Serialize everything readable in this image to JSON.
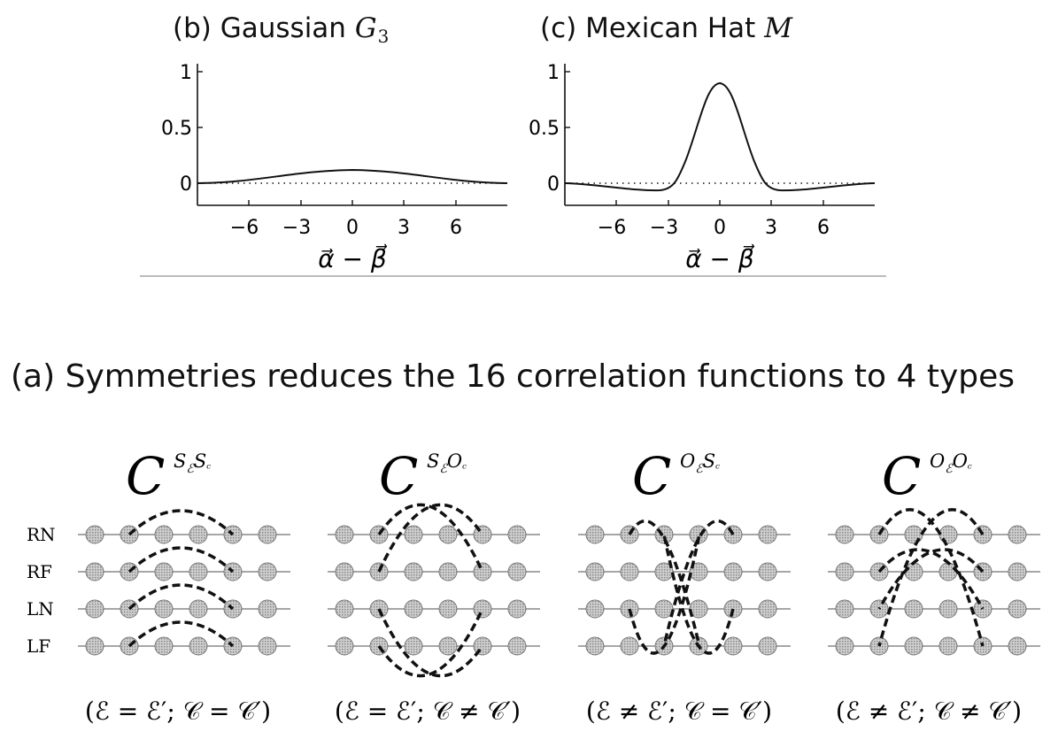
{
  "panel_b": {
    "title_prefix": "(b) Gaussian",
    "title_symbol": "G",
    "title_subscript": "3",
    "y_ticks": [
      "1",
      "0.5",
      "0"
    ],
    "x_ticks": [
      "−6",
      "−3",
      "0",
      "3",
      "6"
    ],
    "xlabel": "α⃗ − β⃗"
  },
  "panel_c": {
    "title_prefix": "(c) Mexican Hat",
    "title_symbol": "M",
    "y_ticks": [
      "1",
      "0.5",
      "0"
    ],
    "x_ticks": [
      "−6",
      "−3",
      "0",
      "3",
      "6"
    ],
    "xlabel": "α⃗ − β⃗"
  },
  "panel_a": {
    "header": "(a) Symmetries reduces the 16 correlation functions to 4 types",
    "row_labels": [
      "RN",
      "RF",
      "LN",
      "LF"
    ],
    "groups": [
      {
        "superscript": "SℰSᶜ",
        "sup_a": "S",
        "sup_a_sub": "ℰ",
        "sup_b": "S",
        "sup_b_sub": "ᶜ",
        "caption": "(ℰ = ℰ′; 𝒞 = 𝒞′)"
      },
      {
        "superscript": "SℰOᶜ",
        "sup_a": "S",
        "sup_a_sub": "ℰ",
        "sup_b": "O",
        "sup_b_sub": "ᶜ",
        "caption": "(ℰ = ℰ′; 𝒞 ≠ 𝒞′)"
      },
      {
        "superscript": "OℰSᶜ",
        "sup_a": "O",
        "sup_a_sub": "ℰ",
        "sup_b": "S",
        "sup_b_sub": "ᶜ",
        "caption": "(ℰ ≠ ℰ′; 𝒞 = 𝒞′)"
      },
      {
        "superscript": "OℰOᶜ",
        "sup_a": "O",
        "sup_a_sub": "ℰ",
        "sup_b": "O",
        "sup_b_sub": "ᶜ",
        "caption": "(ℰ ≠ ℰ′; 𝒞 ≠ 𝒞′)"
      }
    ]
  },
  "colors": {
    "ink": "#111111",
    "node_fill": "#bdbdbd",
    "divider": "#bbbbbb"
  }
}
